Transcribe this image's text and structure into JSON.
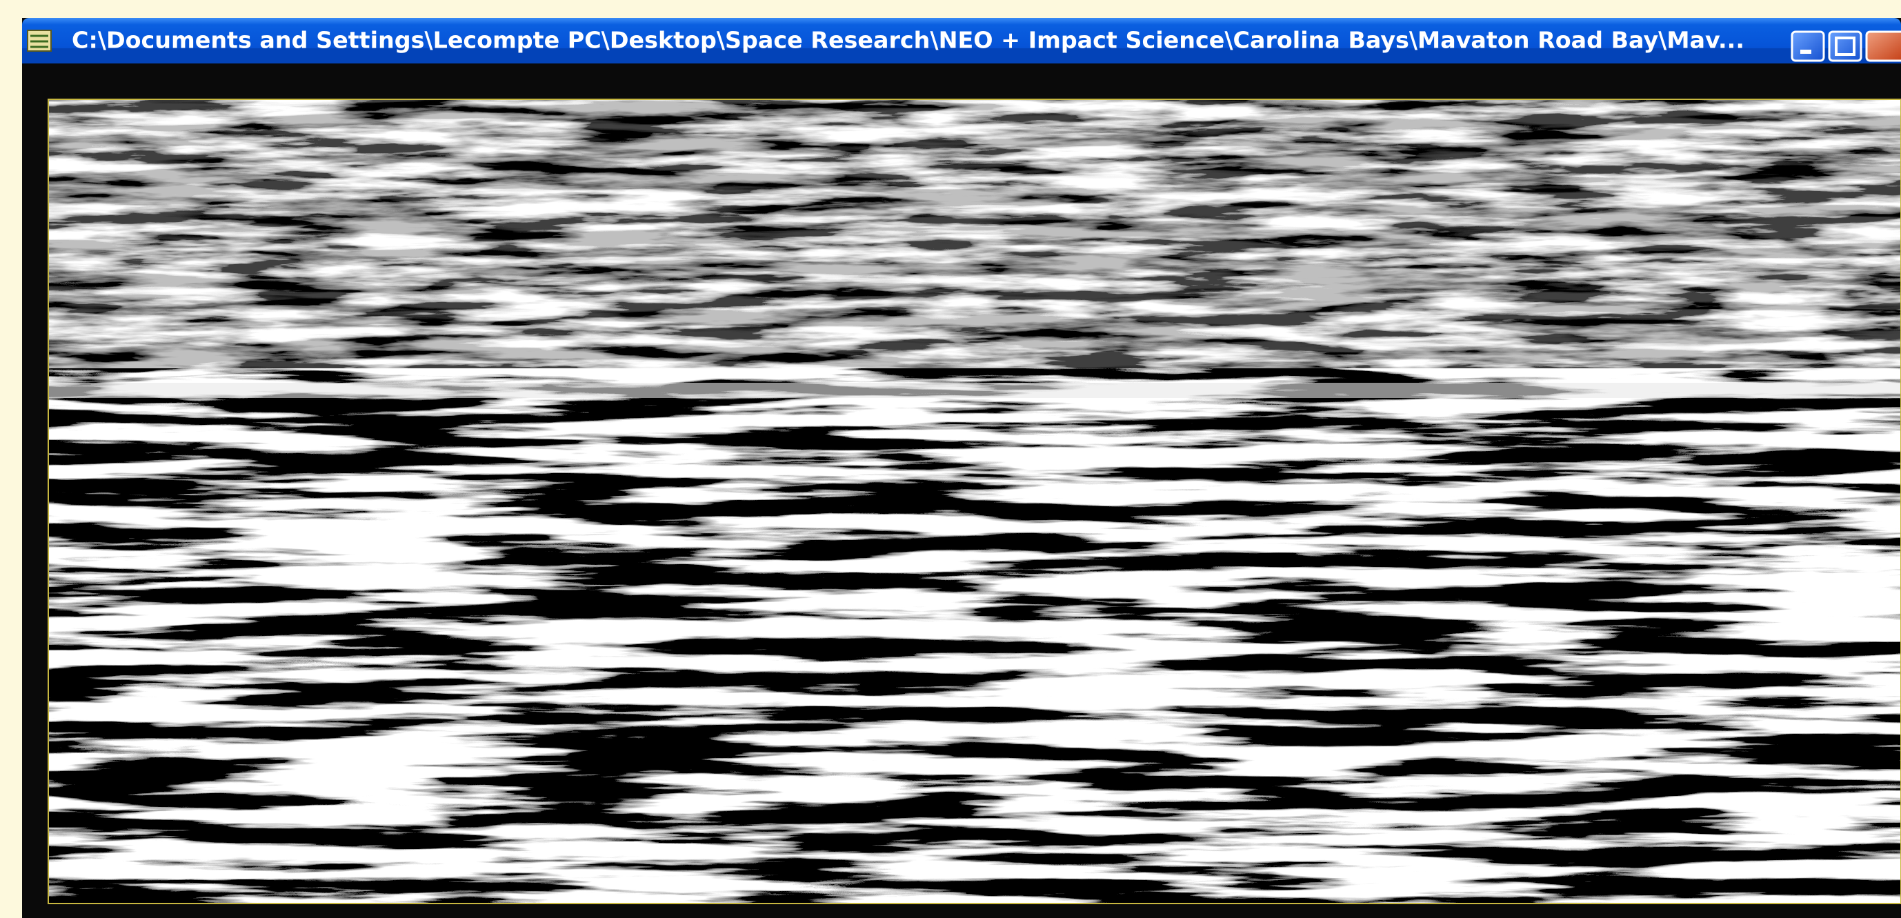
{
  "window": {
    "title": "C:\\Documents and Settings\\Lecompte PC\\Desktop\\Space Research\\NEO + Impact Science\\Carolina Bays\\Mavaton Road Bay\\Mav..."
  }
}
